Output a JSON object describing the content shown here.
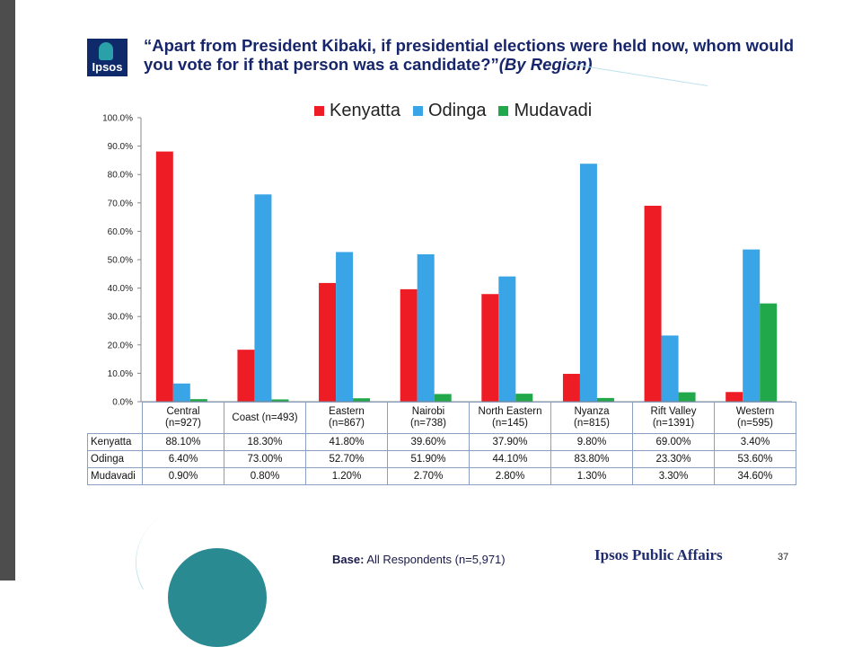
{
  "header": {
    "title_main": "“Apart from President Kibaki, if presidential elections were held now, whom would you vote for if that person was a candidate?”",
    "title_tail": "(By Region)",
    "logo_text": "Ipsos"
  },
  "colors": {
    "Kenyatta": "#ee1c25",
    "Odinga": "#3aa5e6",
    "Mudavadi": "#21a84a"
  },
  "chart_data": {
    "type": "bar",
    "title": "“Apart from President Kibaki, if presidential elections were held now, whom would you vote for if that person was a candidate?”(By Region)",
    "categories": [
      "Central\n(n=927)",
      "Coast (n=493)",
      "Eastern\n(n=867)",
      "Nairobi\n(n=738)",
      "North Eastern\n(n=145)",
      "Nyanza\n(n=815)",
      "Rift Valley\n(n=1391)",
      "Western\n(n=595)"
    ],
    "series": [
      {
        "name": "Kenyatta",
        "values": [
          88.1,
          18.3,
          41.8,
          39.6,
          37.9,
          9.8,
          69.0,
          3.4
        ]
      },
      {
        "name": "Odinga",
        "values": [
          6.4,
          73.0,
          52.7,
          51.9,
          44.1,
          83.8,
          23.3,
          53.6
        ]
      },
      {
        "name": "Mudavadi",
        "values": [
          0.9,
          0.8,
          1.2,
          2.7,
          2.8,
          1.3,
          3.3,
          34.6
        ]
      }
    ],
    "y_ticks": [
      "0.0%",
      "10.0%",
      "20.0%",
      "30.0%",
      "40.0%",
      "50.0%",
      "60.0%",
      "70.0%",
      "80.0%",
      "90.0%",
      "100.0%"
    ],
    "ylim": [
      0,
      100
    ],
    "xlabel": "",
    "ylabel": "",
    "legend": "top-center"
  },
  "table": {
    "headers": [
      "Central\n(n=927)",
      "Coast (n=493)",
      "Eastern\n(n=867)",
      "Nairobi\n(n=738)",
      "North Eastern\n(n=145)",
      "Nyanza\n(n=815)",
      "Rift Valley\n(n=1391)",
      "Western\n(n=595)"
    ],
    "rows": [
      {
        "label": "Kenyatta",
        "cells": [
          "88.10%",
          "18.30%",
          "41.80%",
          "39.60%",
          "37.90%",
          "9.80%",
          "69.00%",
          "3.40%"
        ]
      },
      {
        "label": "Odinga",
        "cells": [
          "6.40%",
          "73.00%",
          "52.70%",
          "51.90%",
          "44.10%",
          "83.80%",
          "23.30%",
          "53.60%"
        ]
      },
      {
        "label": "Mudavadi",
        "cells": [
          "0.90%",
          "0.80%",
          "1.20%",
          "2.70%",
          "2.80%",
          "1.30%",
          "3.30%",
          "34.60%"
        ]
      }
    ]
  },
  "footer": {
    "base_label": "Base:",
    "base_text": "All Respondents (n=5,971)",
    "brand": "Ipsos Public Affairs",
    "page_number": "37"
  }
}
